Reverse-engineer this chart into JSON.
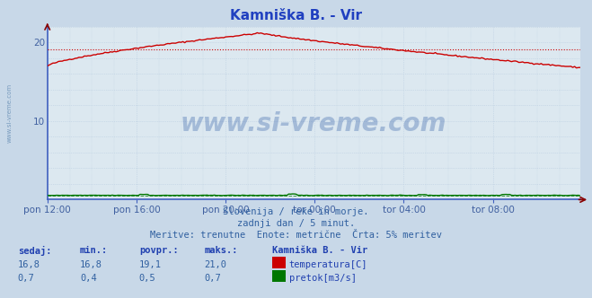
{
  "title": "Kamniška B. - Vir",
  "background_color": "#c8d8e8",
  "plot_bg_color": "#dce8f0",
  "grid_color": "#b8cce0",
  "spine_color": "#4060c0",
  "ylabel_color": "#4060a0",
  "xlabel_color": "#4060a0",
  "title_color": "#2040c0",
  "watermark": "www.si-vreme.com",
  "watermark_side": "www.si-vreme.com",
  "subtitle1": "Slovenija / reke in morje.",
  "subtitle2": "zadnji dan / 5 minut.",
  "subtitle3": "Meritve: trenutne  Enote: metrične  Črta: 5% meritev",
  "x_labels": [
    "pon 12:00",
    "pon 16:00",
    "pon 20:00",
    "tor 00:00",
    "tor 04:00",
    "tor 08:00"
  ],
  "x_ticks_pos": [
    0,
    48,
    96,
    144,
    192,
    240
  ],
  "n_points": 288,
  "ylim": [
    0,
    22
  ],
  "y_ticks": [
    10,
    20
  ],
  "temp_color": "#cc0000",
  "flow_color": "#007700",
  "temp_avg": 19.1,
  "flow_avg": 0.5,
  "temp_min": 16.8,
  "temp_max": 21.0,
  "temp_curr": 16.8,
  "flow_min": 0.4,
  "flow_max": 0.7,
  "flow_curr": 0.7,
  "table_headers": [
    "sedaj:",
    "min.:",
    "povpr.:",
    "maks.:"
  ],
  "table_values_temp": [
    "16,8",
    "16,8",
    "19,1",
    "21,0"
  ],
  "table_values_flow": [
    "0,7",
    "0,4",
    "0,5",
    "0,7"
  ],
  "legend_label_temp": "temperatura[C]",
  "legend_label_flow": "pretok[m3/s]",
  "legend_title": "Kamniška B. - Vir"
}
